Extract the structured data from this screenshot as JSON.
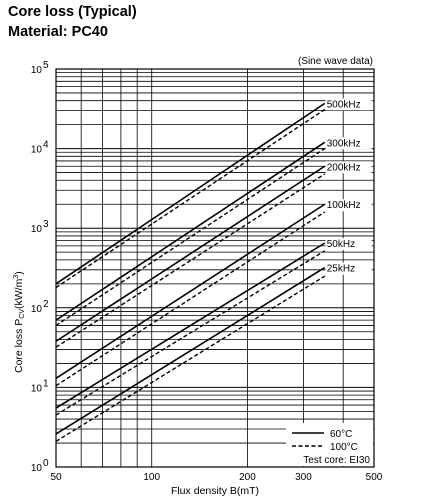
{
  "title": "Core loss (Typical)",
  "subtitle": "Material: PC40",
  "chart_data": {
    "type": "line",
    "x_scale": "log",
    "y_scale": "log",
    "xlim": [
      50,
      500
    ],
    "ylim": [
      1,
      100000
    ],
    "grid": true,
    "xlabel": "Flux density B(mT)",
    "ylabel_prefix": "Core loss P",
    "ylabel_sub": "CV",
    "ylabel_suffix": "(kW/m",
    "ylabel_sup": "3",
    "ylabel_close": ")",
    "xticks": [
      {
        "value": 50,
        "label": "50"
      },
      {
        "value": 100,
        "label": "100"
      },
      {
        "value": 200,
        "label": "200"
      },
      {
        "value": 300,
        "label": "300"
      },
      {
        "value": 500,
        "label": "500"
      }
    ],
    "yticks": [
      {
        "value": 1,
        "base": "10",
        "exp": "0"
      },
      {
        "value": 10,
        "base": "10",
        "exp": "1"
      },
      {
        "value": 100,
        "base": "10",
        "exp": "2"
      },
      {
        "value": 1000,
        "base": "10",
        "exp": "3"
      },
      {
        "value": 10000,
        "base": "10",
        "exp": "4"
      },
      {
        "value": 100000,
        "base": "10",
        "exp": "5"
      }
    ],
    "note": "(Sine wave data)",
    "series": [
      {
        "name": "500kHz",
        "lines": [
          {
            "temp": "60°C",
            "x": [
              50,
              350
            ],
            "y": [
              200,
              37000
            ]
          },
          {
            "temp": "100°C",
            "x": [
              50,
              350
            ],
            "y": [
              180,
              31000
            ]
          }
        ]
      },
      {
        "name": "300kHz",
        "lines": [
          {
            "temp": "60°C",
            "x": [
              50,
              350
            ],
            "y": [
              70,
              12000
            ]
          },
          {
            "temp": "100°C",
            "x": [
              50,
              350
            ],
            "y": [
              60,
              10000
            ]
          }
        ]
      },
      {
        "name": "200kHz",
        "lines": [
          {
            "temp": "60°C",
            "x": [
              50,
              350
            ],
            "y": [
              38,
              6000
            ]
          },
          {
            "temp": "100°C",
            "x": [
              50,
              350
            ],
            "y": [
              32,
              4800
            ]
          }
        ]
      },
      {
        "name": "100kHz",
        "lines": [
          {
            "temp": "60°C",
            "x": [
              50,
              350
            ],
            "y": [
              13,
              2000
            ]
          },
          {
            "temp": "100°C",
            "x": [
              50,
              350
            ],
            "y": [
              10.5,
              1600
            ]
          }
        ]
      },
      {
        "name": "50kHz",
        "lines": [
          {
            "temp": "60°C",
            "x": [
              50,
              350
            ],
            "y": [
              5.5,
              650
            ]
          },
          {
            "temp": "100°C",
            "x": [
              50,
              350
            ],
            "y": [
              4.5,
              520
            ]
          }
        ]
      },
      {
        "name": "25kHz",
        "lines": [
          {
            "temp": "60°C",
            "x": [
              50,
              350
            ],
            "y": [
              2.6,
              320
            ]
          },
          {
            "temp": "100°C",
            "x": [
              50,
              350
            ],
            "y": [
              2.1,
              250
            ]
          }
        ]
      }
    ],
    "legend": {
      "placement": "bottom-right",
      "solid_label": "60°C",
      "dashed_label": "100°C",
      "test_core": "Test core: EI30"
    }
  }
}
